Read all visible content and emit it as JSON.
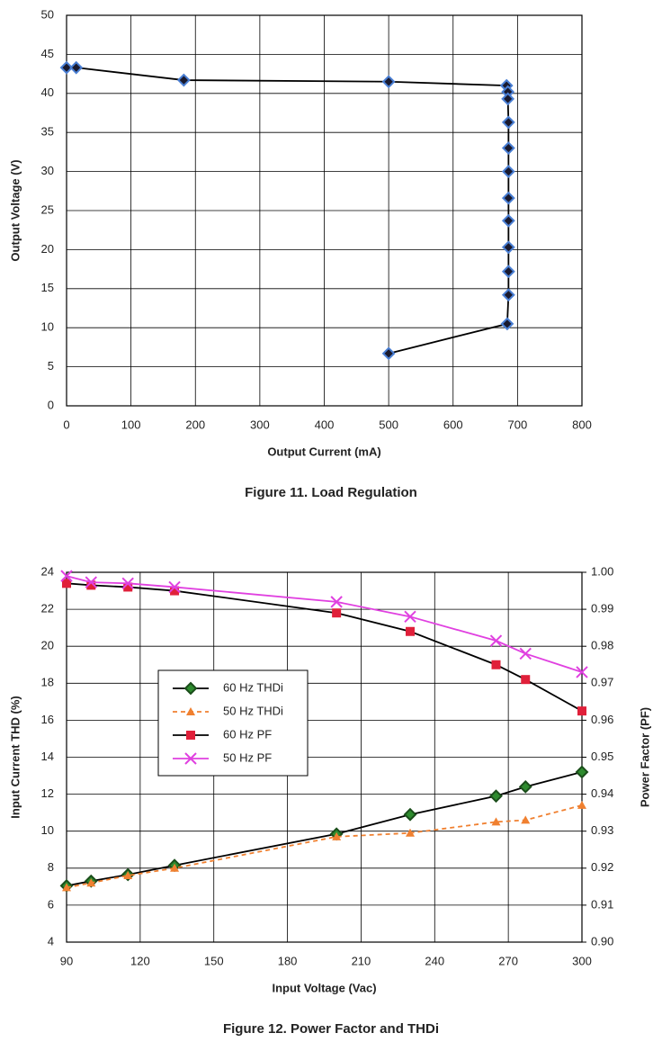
{
  "chart_data": [
    {
      "type": "line",
      "caption": "Figure 11. Load Regulation",
      "xlabel": "Output Current (mA)",
      "ylabel": "Output Voltage (V)",
      "x": [
        0,
        15,
        182,
        500,
        683,
        685,
        685,
        686,
        686,
        686,
        686,
        686,
        686,
        686,
        686,
        684,
        500
      ],
      "series": [
        {
          "color": "#000000",
          "marker": "diamond",
          "marker_color": "#1a1a2e",
          "marker_edge": "#4a7fd4",
          "values": [
            43.3,
            43.3,
            41.7,
            41.5,
            41.0,
            40.2,
            39.3,
            36.3,
            33.0,
            30.0,
            26.6,
            23.7,
            20.3,
            17.2,
            14.2,
            10.5,
            6.7
          ]
        }
      ],
      "xlim": [
        0,
        800
      ],
      "xticks": [
        0,
        100,
        200,
        300,
        400,
        500,
        600,
        700,
        800
      ],
      "ylim": [
        0,
        50
      ],
      "yticks": [
        0,
        5,
        10,
        15,
        20,
        25,
        30,
        35,
        40,
        45,
        50
      ],
      "grid": true
    },
    {
      "type": "line",
      "caption": "Figure 12. Power Factor and THDi",
      "xlabel": "Input Voltage (Vac)",
      "ylabel": "Input Current THD (%)",
      "y2label": "Power Factor (PF)",
      "x": [
        90,
        100,
        115,
        134,
        200,
        230,
        265,
        277,
        300
      ],
      "series": [
        {
          "name": "60 Hz THDi",
          "color": "#000000",
          "marker": "diamond",
          "marker_color": "#2e8b2e",
          "marker_edge": "#1a4d1a",
          "values": [
            7.05,
            7.3,
            7.65,
            8.15,
            9.85,
            10.9,
            11.9,
            12.4,
            13.2
          ]
        },
        {
          "name": "50 Hz THDi",
          "color": "#f08030",
          "dash": true,
          "marker": "triangle",
          "marker_color": "#f08030",
          "marker_edge": "#f08030",
          "values": [
            6.95,
            7.2,
            7.6,
            8.0,
            9.7,
            9.9,
            10.5,
            10.6,
            11.4
          ]
        },
        {
          "name": "60 Hz PF",
          "axis": "y2",
          "color": "#000000",
          "marker": "square",
          "marker_color": "#e0203a",
          "marker_edge": "#e0203a",
          "values": [
            0.997,
            0.9965,
            0.996,
            0.995,
            0.989,
            0.984,
            0.975,
            0.971,
            0.9625
          ]
        },
        {
          "name": "50 Hz PF",
          "axis": "y2",
          "color": "#e040e0",
          "marker": "x",
          "marker_color": "#e040e0",
          "marker_edge": "#e040e0",
          "values": [
            0.999,
            0.9973,
            0.997,
            0.996,
            0.992,
            0.988,
            0.9815,
            0.978,
            0.973
          ]
        }
      ],
      "xlim": [
        90,
        300
      ],
      "xticks": [
        90,
        120,
        150,
        180,
        210,
        240,
        270,
        300
      ],
      "ylim": [
        4,
        24
      ],
      "yticks": [
        4,
        6,
        8,
        10,
        12,
        14,
        16,
        18,
        20,
        22,
        24
      ],
      "y2lim": [
        0.9,
        1.0
      ],
      "y2ticks": [
        {
          "value": 0.9,
          "label": "0.90"
        },
        0.91,
        0.92,
        0.93,
        0.94,
        0.95,
        0.96,
        0.97,
        0.98,
        0.99,
        {
          "value": 1.0,
          "label": "1.00"
        }
      ],
      "grid": true,
      "legend": "center left"
    }
  ]
}
